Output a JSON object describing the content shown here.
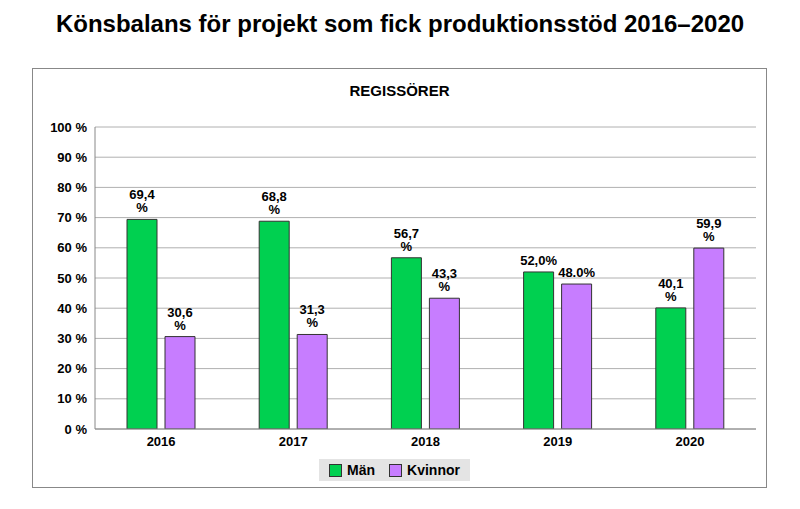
{
  "chart_data": {
    "type": "bar",
    "title": "Könsbalans för projekt som fick produktionsstöd 2016–2020",
    "subtitle": "REGISSÖRER",
    "categories": [
      "2016",
      "2017",
      "2018",
      "2019",
      "2020"
    ],
    "series": [
      {
        "name": "Män",
        "color": "#00d050",
        "values": [
          69.4,
          68.8,
          56.7,
          52.0,
          40.1
        ],
        "value_labels": [
          "69,4 %",
          "68,8 %",
          "56,7 %",
          "52,0%",
          "40,1 %"
        ]
      },
      {
        "name": "Kvinnor",
        "color": "#c77dff",
        "values": [
          30.6,
          31.3,
          43.3,
          48.0,
          59.9
        ],
        "value_labels": [
          "30,6 %",
          "31,3 %",
          "43,3 %",
          "48.0%",
          "59,9 %"
        ]
      }
    ],
    "ylim": [
      0,
      100
    ],
    "yticks": [
      {
        "value": 0,
        "label": "0 %"
      },
      {
        "value": 10,
        "label": "10 %"
      },
      {
        "value": 20,
        "label": "20 %"
      },
      {
        "value": 30,
        "label": "30 %"
      },
      {
        "value": 40,
        "label": "40 %"
      },
      {
        "value": 50,
        "label": "50 %"
      },
      {
        "value": 60,
        "label": "60 %"
      },
      {
        "value": 70,
        "label": "70 %"
      },
      {
        "value": 80,
        "label": "80 %"
      },
      {
        "value": 90,
        "label": "90 %"
      },
      {
        "value": 100,
        "label": "100 %"
      }
    ],
    "grid": true,
    "legend": "bottom",
    "data_labels": true
  }
}
